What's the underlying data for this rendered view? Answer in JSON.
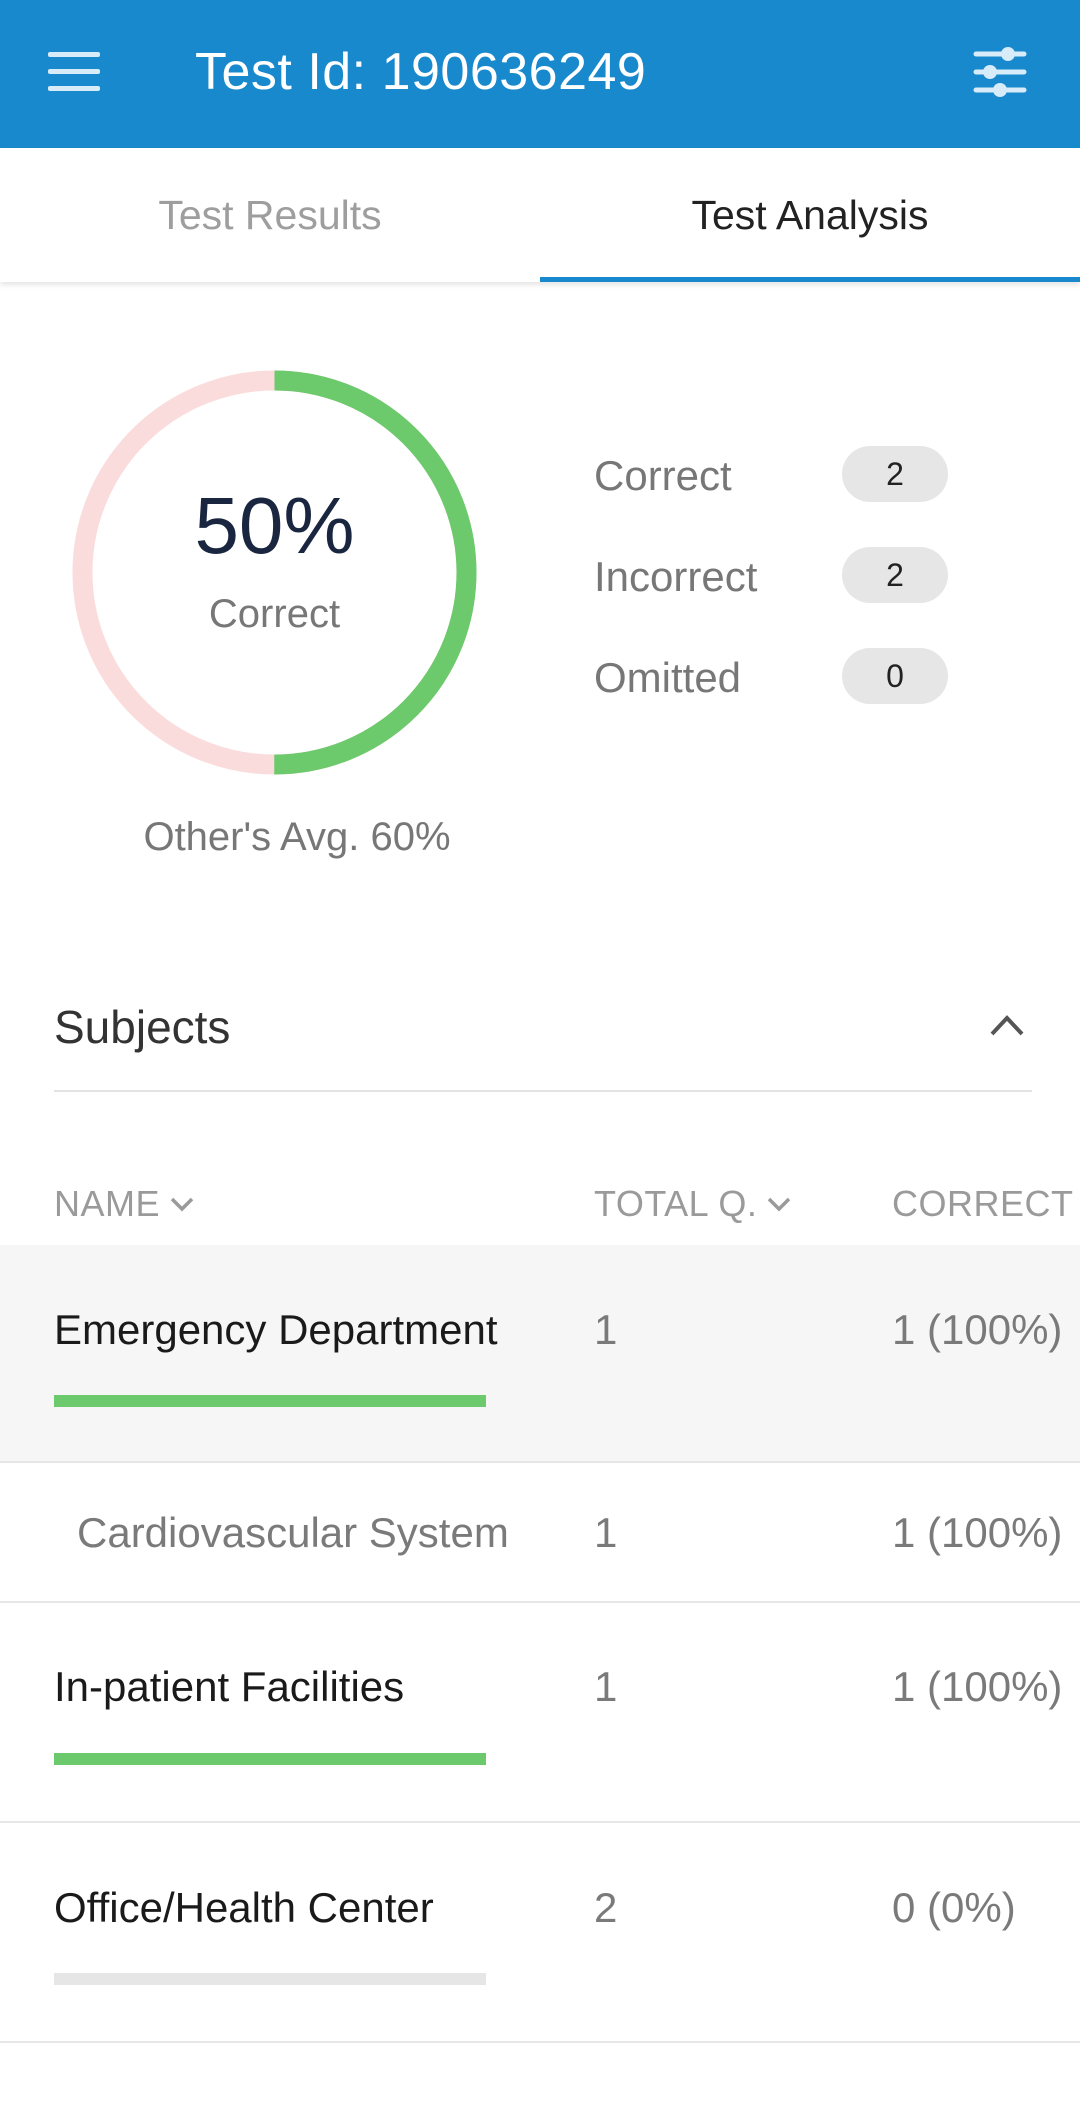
{
  "header": {
    "title": "Test Id: 190636249",
    "background_color": "#1889cc"
  },
  "tabs": [
    {
      "label": "Test Results",
      "active": false
    },
    {
      "label": "Test Analysis",
      "active": true
    }
  ],
  "summary": {
    "percent_text": "50%",
    "percent_value": 50,
    "percent_label": "Correct",
    "others_avg": "Other's Avg. 60%",
    "colors": {
      "correct": "#6cc96c",
      "remaining": "#fbdcdc"
    },
    "stats": [
      {
        "label": "Correct",
        "value": "2"
      },
      {
        "label": "Incorrect",
        "value": "2"
      },
      {
        "label": "Omitted",
        "value": "0"
      }
    ]
  },
  "subjects": {
    "title": "Subjects",
    "columns": [
      "NAME",
      "TOTAL Q.",
      "CORRECT"
    ],
    "rows": [
      {
        "name": "Emergency Department",
        "total": "1",
        "correct": "1 (100%)",
        "level": 0,
        "bar_fraction": 1.0,
        "bar_color": "#6cc96c",
        "highlight": true
      },
      {
        "name": "Cardiovascular System",
        "total": "1",
        "correct": "1 (100%)",
        "level": 1
      },
      {
        "name": "In-patient Facilities",
        "total": "1",
        "correct": "1 (100%)",
        "level": 0,
        "bar_fraction": 1.0,
        "bar_color": "#6cc96c"
      },
      {
        "name": "Office/Health Center",
        "total": "2",
        "correct": "0 (0%)",
        "level": 0,
        "bar_fraction": 0.0,
        "bar_color": "#e6e6e6"
      }
    ]
  }
}
